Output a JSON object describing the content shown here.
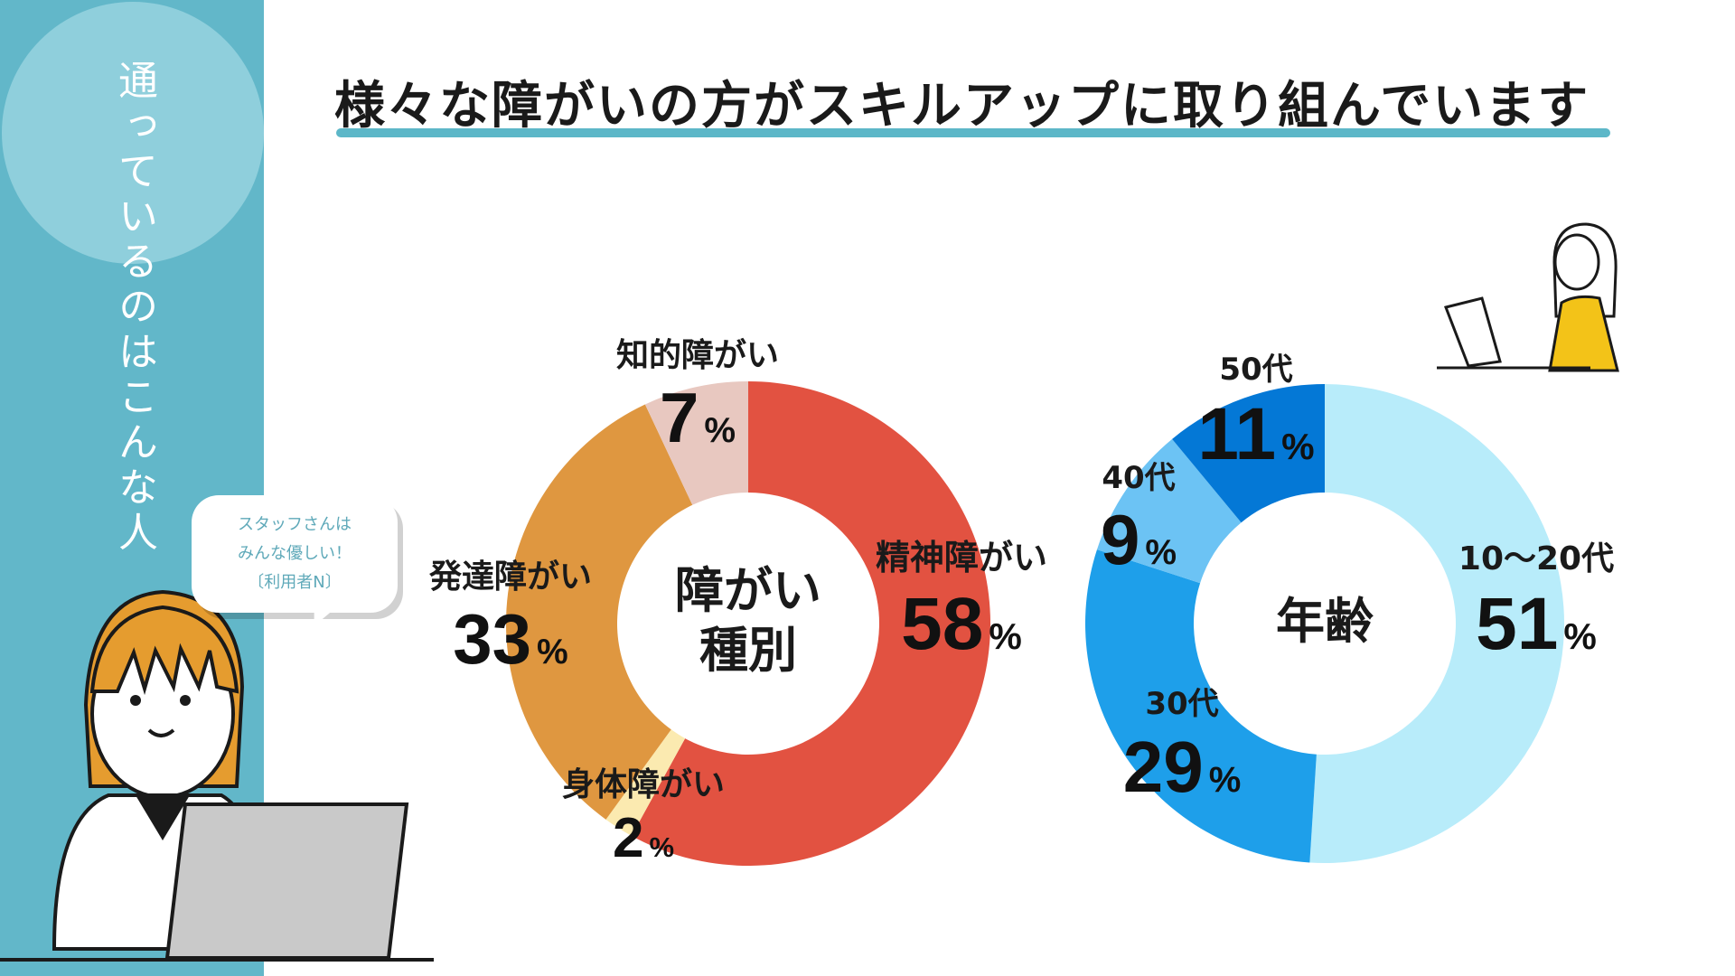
{
  "page": {
    "title": "様々な障がいの方がスキルアップに取り組んでいます",
    "side_heading": "通っているのはこんな人",
    "speech_bubble": [
      "スタッフさんは",
      "みんな優しい！",
      "〔利用者N〕"
    ]
  },
  "colors": {
    "side_band": "#62b7c9",
    "title_underline": "#5cb7c8"
  },
  "chart_data": [
    {
      "type": "pie",
      "donut": true,
      "center_label": [
        "障がい",
        "種別"
      ],
      "unit": "%",
      "slices": [
        {
          "name": "精神障がい",
          "value": 58,
          "color": "#e25241"
        },
        {
          "name": "身体障がい",
          "value": 2,
          "color": "#fbeab0"
        },
        {
          "name": "発達障がい",
          "value": 33,
          "color": "#df9740"
        },
        {
          "name": "知的障がい",
          "value": 7,
          "color": "#e8c8c0"
        }
      ]
    },
    {
      "type": "pie",
      "donut": true,
      "center_label": [
        "年齢"
      ],
      "unit": "%",
      "slices": [
        {
          "name": "10～20代",
          "value": 51,
          "color": "#b8ecfa"
        },
        {
          "name": "30代",
          "value": 29,
          "color": "#1e9fea"
        },
        {
          "name": "40代",
          "value": 9,
          "color": "#6cc3f4"
        },
        {
          "name": "50代",
          "value": 11,
          "color": "#0478d6"
        }
      ]
    }
  ]
}
